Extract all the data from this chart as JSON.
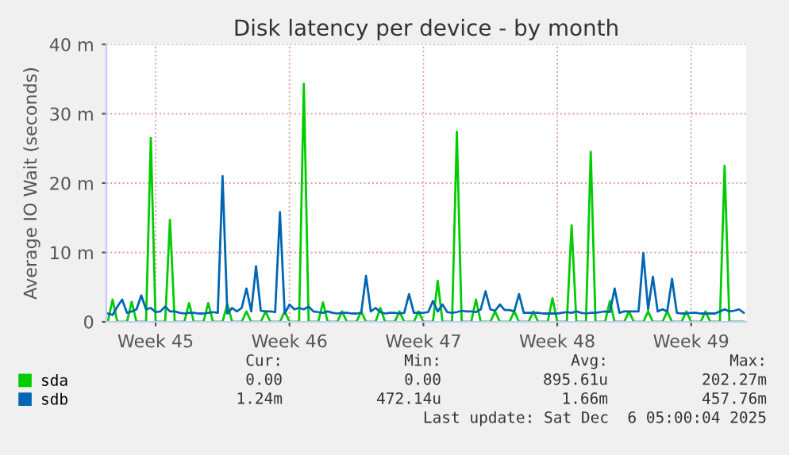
{
  "chart_data": {
    "type": "line",
    "title": "Disk latency per device - by month",
    "ylabel": "Average IO Wait (seconds)",
    "categories": [
      null,
      null,
      null,
      null,
      null,
      null,
      null,
      null,
      null,
      null,
      "Week 45",
      null,
      null,
      null,
      null,
      null,
      null,
      null,
      null,
      null,
      null,
      null,
      null,
      null,
      null,
      null,
      null,
      null,
      null,
      null,
      null,
      null,
      null,
      null,
      null,
      null,
      null,
      null,
      "Week 46",
      null,
      null,
      null,
      null,
      null,
      null,
      null,
      null,
      null,
      null,
      null,
      null,
      null,
      null,
      null,
      null,
      null,
      null,
      null,
      null,
      null,
      null,
      null,
      null,
      null,
      null,
      null,
      "Week 47",
      null,
      null,
      null,
      null,
      null,
      null,
      null,
      null,
      null,
      null,
      null,
      null,
      null,
      null,
      null,
      null,
      null,
      null,
      null,
      null,
      null,
      null,
      null,
      null,
      null,
      null,
      null,
      "Week 48",
      null,
      null,
      null,
      null,
      null,
      null,
      null,
      null,
      null,
      null,
      null,
      null,
      null,
      null,
      null,
      null,
      null,
      null,
      null,
      null,
      null,
      null,
      null,
      null,
      null,
      null,
      null,
      "Week 49",
      null,
      null,
      null,
      null,
      null,
      null,
      null,
      null,
      null,
      null,
      null
    ],
    "ylim": [
      0,
      40
    ],
    "yticks": [
      0,
      {
        "value": 10,
        "label": "10 m"
      },
      {
        "value": 20,
        "label": "20 m"
      },
      {
        "value": 30,
        "label": "30 m"
      },
      {
        "value": 40,
        "label": "40 m"
      }
    ],
    "grid": true,
    "legend": "bottom left",
    "marker": "none",
    "line_style": "solid",
    "series": [
      {
        "name": "sda",
        "color": "#00cc00",
        "values": [
          0,
          3.2,
          0,
          0,
          0,
          2.9,
          0,
          0,
          0,
          26.5,
          0,
          0,
          0,
          14.7,
          0,
          0,
          0,
          2.7,
          0,
          0,
          0,
          2.7,
          0,
          0,
          0,
          2.6,
          0,
          0,
          0,
          1.5,
          0,
          0,
          0,
          1.5,
          0,
          0,
          0,
          1.5,
          0,
          0,
          0,
          34.3,
          0,
          0,
          0,
          2.8,
          0,
          0,
          0,
          1.5,
          0,
          0,
          0,
          1.5,
          0,
          0,
          0,
          2.0,
          0,
          0,
          0,
          1.5,
          0,
          0,
          0,
          1.5,
          0,
          0,
          0,
          5.9,
          0,
          0,
          0,
          27.4,
          0,
          0,
          0,
          3.2,
          0,
          0,
          0,
          1.5,
          0,
          0,
          0,
          1.5,
          0,
          0,
          0,
          1.5,
          0,
          0,
          0,
          3.4,
          0,
          0,
          0,
          13.9,
          0,
          0,
          0,
          24.5,
          0,
          0,
          0,
          3.0,
          0,
          0,
          0,
          1.5,
          0,
          0,
          0,
          1.5,
          0,
          0,
          0,
          1.5,
          0,
          0,
          0,
          1.5,
          0,
          0,
          0,
          1.5,
          0,
          0,
          0,
          22.5,
          0,
          0,
          0,
          0
        ]
      },
      {
        "name": "sdb",
        "color": "#0066b3",
        "values": [
          1.2,
          1.0,
          2.2,
          3.2,
          1.3,
          1.5,
          1.8,
          3.8,
          1.8,
          2.0,
          1.4,
          1.5,
          2.2,
          1.5,
          1.5,
          1.3,
          1.2,
          1.3,
          1.3,
          1.2,
          1.2,
          1.3,
          1.4,
          1.3,
          21.0,
          1.2,
          2.0,
          1.5,
          2.0,
          4.8,
          1.5,
          8.0,
          1.6,
          1.5,
          1.5,
          1.4,
          15.8,
          1.2,
          2.5,
          1.8,
          2.0,
          1.8,
          2.2,
          1.5,
          1.4,
          1.3,
          1.5,
          1.3,
          1.2,
          1.3,
          1.3,
          1.2,
          1.2,
          1.3,
          6.6,
          1.5,
          2.0,
          1.4,
          1.2,
          1.3,
          1.3,
          1.2,
          1.3,
          4.0,
          1.3,
          1.3,
          1.3,
          1.4,
          3.0,
          1.5,
          2.5,
          1.4,
          1.3,
          1.4,
          1.6,
          1.5,
          1.5,
          1.4,
          1.8,
          4.4,
          1.8,
          1.6,
          2.5,
          1.7,
          1.7,
          1.5,
          4.0,
          1.3,
          1.3,
          1.3,
          1.3,
          1.2,
          1.2,
          1.2,
          1.2,
          1.3,
          1.4,
          1.3,
          1.5,
          1.3,
          1.2,
          1.3,
          1.3,
          1.4,
          1.5,
          1.4,
          4.8,
          1.3,
          1.5,
          1.5,
          1.5,
          1.5,
          9.9,
          1.8,
          6.5,
          1.5,
          1.8,
          1.5,
          6.2,
          1.3,
          1.2,
          1.2,
          1.3,
          1.3,
          1.2,
          1.2,
          1.2,
          1.2,
          1.5,
          1.8,
          1.5,
          1.6,
          1.8,
          1.3
        ]
      }
    ],
    "annotations": [
      "Cur:",
      "Min:",
      "Avg:",
      "Max:",
      "0.00",
      "0.00",
      "895.61u",
      "202.27m",
      "1.24m",
      "472.14u",
      "1.66m",
      "457.76m",
      "Last update: Sat Dec  6 05:00:04 2025"
    ]
  }
}
